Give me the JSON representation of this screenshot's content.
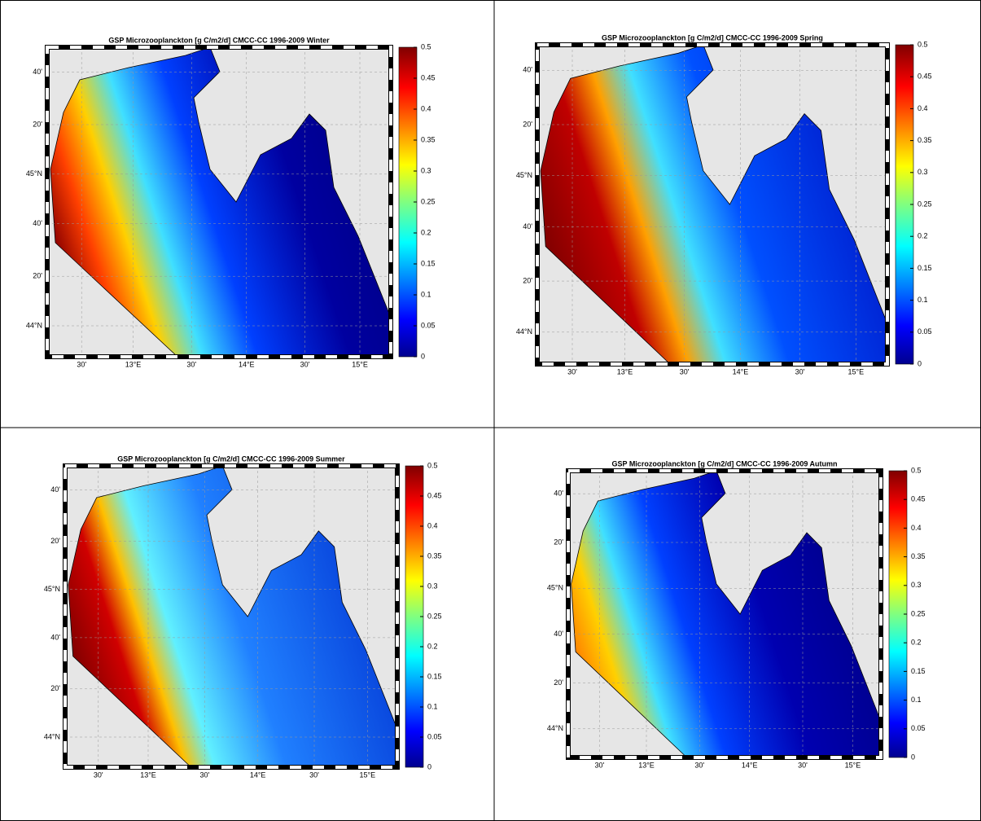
{
  "panels": [
    {
      "title": "GSP Microzooplanckton [g C/m2/d] CMCC-CC 1996-2009 Winter",
      "colorbar": {
        "lim": [
          0,
          0.5
        ],
        "ticks": [
          0,
          0.05,
          0.1,
          0.15,
          0.2,
          0.25,
          0.3,
          0.35,
          0.4,
          0.45,
          0.5
        ]
      },
      "lat_labels": [
        "40'",
        "20'",
        "45°N",
        "40'",
        "20'",
        "44°N"
      ],
      "lon_labels": [
        "30'",
        "13°E",
        "30'",
        "14°E",
        "30'",
        "15°E"
      ]
    },
    {
      "title": "GSP Microzooplanckton [g C/m2/d] CMCC-CC 1996-2009 Spring",
      "colorbar": {
        "lim": [
          0,
          0.5
        ],
        "ticks": [
          0,
          0.05,
          0.1,
          0.15,
          0.2,
          0.25,
          0.3,
          0.35,
          0.4,
          0.45,
          0.5
        ]
      },
      "lat_labels": [
        "40'",
        "20'",
        "45°N",
        "40'",
        "20'",
        "44°N"
      ],
      "lon_labels": [
        "30'",
        "13°E",
        "30'",
        "14°E",
        "30'",
        "15°E"
      ]
    },
    {
      "title": "GSP Microzooplanckton [g C/m2/d] CMCC-CC 1996-2009 Summer",
      "colorbar": {
        "lim": [
          0,
          0.5
        ],
        "ticks": [
          0,
          0.05,
          0.1,
          0.15,
          0.2,
          0.25,
          0.3,
          0.35,
          0.4,
          0.45,
          0.5
        ]
      },
      "lat_labels": [
        "40'",
        "20'",
        "45°N",
        "40'",
        "20'",
        "44°N"
      ],
      "lon_labels": [
        "30'",
        "13°E",
        "30'",
        "14°E",
        "30'",
        "15°E"
      ]
    },
    {
      "title": "GSP Microzooplanckton [g C/m2/d] CMCC-CC 1996-2009 Autumn",
      "colorbar": {
        "lim": [
          0,
          0.5
        ],
        "ticks": [
          0,
          0.05,
          0.1,
          0.15,
          0.2,
          0.25,
          0.3,
          0.35,
          0.4,
          0.45,
          0.5
        ]
      },
      "lat_labels": [
        "40'",
        "20'",
        "45°N",
        "40'",
        "20'",
        "44°N"
      ],
      "lon_labels": [
        "30'",
        "13°E",
        "30'",
        "14°E",
        "30'",
        "15°E"
      ]
    }
  ]
}
